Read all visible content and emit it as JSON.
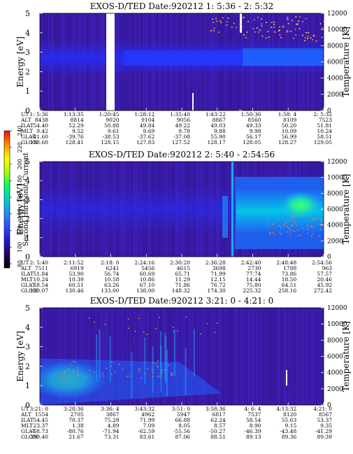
{
  "colorbar": {
    "label": "Second Harmonic Current",
    "ticks": [
      "240",
      "220",
      "200",
      "180",
      "160",
      "140",
      "120",
      "100",
      "80"
    ],
    "colors": [
      "#000000",
      "#2a0060",
      "#1a1ad8",
      "#2f4bff",
      "#1f8fff",
      "#00d0d0",
      "#00ff60",
      "#a8ff00",
      "#ffff00",
      "#ff9000",
      "#ff0000"
    ]
  },
  "row_labels": [
    "UT",
    "ALT",
    "ILAT",
    "MLT",
    "GLAT",
    "GLON"
  ],
  "chart_data": [
    {
      "type": "heatmap",
      "title": "EXOS-D/TED   Date:920212  1: 5:36 - 2: 5:32",
      "ylabel": "Energy [eV]",
      "y2label": "Temperature [K]",
      "ylim": [
        0,
        5
      ],
      "y2lim": [
        0,
        12000
      ],
      "yticks": [
        "0",
        "1",
        "2",
        "3",
        "4",
        "5"
      ],
      "y2ticks": [
        "0",
        "2000",
        "4000",
        "6000",
        "8000",
        "10000",
        "12000"
      ],
      "columns": [
        {
          "UT": "1: 5:36",
          "ALT": "8438",
          "ILAT": "54.40",
          "MLT": "9.42",
          "GLAT": "-41.60",
          "GLON": "128.60"
        },
        {
          "UT": "1:13:35",
          "ALT": "8814",
          "ILAT": "52.29",
          "MLT": "9.52",
          "GLAT": "-39.76",
          "GLON": "128.41"
        },
        {
          "UT": "1:20:45",
          "ALT": "9020",
          "ILAT": "50.88",
          "MLT": "9.61",
          "GLAT": "-38.53",
          "GLON": "128.15"
        },
        {
          "UT": "1:28:12",
          "ALT": "9104",
          "ILAT": "49.84",
          "MLT": "9.69",
          "GLAT": "-37.62",
          "GLON": "127.83"
        },
        {
          "UT": "1:35:40",
          "ALT": "9056",
          "ILAT": "49.22",
          "MLT": "9.78",
          "GLAT": "-37.08",
          "GLON": "127.52"
        },
        {
          "UT": "1:43:22",
          "ALT": "8867",
          "ILAT": "49.03",
          "MLT": "9.88",
          "GLAT": "55.90",
          "GLON": "128.17"
        },
        {
          "UT": "1:50:36",
          "ALT": "8560",
          "ILAT": "49.33",
          "MLT": "9.98",
          "GLAT": "56.17",
          "GLON": "128.05"
        },
        {
          "UT": "1:58: 4",
          "ALT": "8109",
          "ILAT": "50.20",
          "MLT": "10.09",
          "GLAT": "56.99",
          "GLON": "128.27"
        },
        {
          "UT": "2: 5:32",
          "ALT": "7523",
          "ILAT": "51.81",
          "MLT": "10.24",
          "GLAT": "58.51",
          "GLON": "129.05"
        }
      ]
    },
    {
      "type": "heatmap",
      "title": "EXOS-D/TED   Date:920212  2: 5:40 - 2:54:56",
      "ylabel": "Energy [eV]",
      "y2label": "Temperature [K]",
      "ylim": [
        0,
        5
      ],
      "y2lim": [
        0,
        12000
      ],
      "yticks": [
        "0",
        "1",
        "2",
        "3",
        "4",
        "5"
      ],
      "y2ticks": [
        "0",
        "2000",
        "4000",
        "6000",
        "8000",
        "10000",
        "12000"
      ],
      "columns": [
        {
          "UT": "2: 5:40",
          "ALT": "7511",
          "ILAT": "51.84",
          "MLT": "10.24",
          "GLAT": "58.54",
          "GLON": "129.07"
        },
        {
          "UT": "2:11:52",
          "ALT": "6919",
          "ILAT": "53.90",
          "MLT": "10.39",
          "GLAT": "60.51",
          "GLON": "130.46"
        },
        {
          "UT": "2:18: 0",
          "ALT": "6241",
          "ILAT": "56.74",
          "MLT": "10.58",
          "GLAT": "63.26",
          "GLON": "133.00"
        },
        {
          "UT": "2:24:16",
          "ALT": "5456",
          "ILAT": "60.69",
          "MLT": "10.86",
          "GLAT": "67.10",
          "GLON": "138.00"
        },
        {
          "UT": "2:30:20",
          "ALT": "4615",
          "ILAT": "65.71",
          "MLT": "11.29",
          "GLAT": "71.86",
          "GLON": "148.32"
        },
        {
          "UT": "2:36:28",
          "ALT": "3698",
          "ILAT": "71.99",
          "MLT": "12.15",
          "GLAT": "76.72",
          "GLON": "174.30"
        },
        {
          "UT": "2:42:40",
          "ALT": "2730",
          "ILAT": "77.74",
          "MLT": "14.44",
          "GLAT": "75.80",
          "GLON": "225.32"
        },
        {
          "UT": "2:48:48",
          "ALT": "1788",
          "ILAT": "73.86",
          "MLT": "18.50",
          "GLAT": "64.51",
          "GLON": "258.16"
        },
        {
          "UT": "2:54:56",
          "ALT": "963",
          "ILAT": "57.57",
          "MLT": "20.46",
          "GLAT": "45.92",
          "GLON": "272.42"
        }
      ]
    },
    {
      "type": "heatmap",
      "title": "EXOS-D/TED   Date:920212  3:21: 0 - 4:21: 0",
      "ylabel": "Energy [eV]",
      "y2label": "Temperature [K]",
      "ylim": [
        0,
        5
      ],
      "y2lim": [
        0,
        12000
      ],
      "yticks": [
        "0",
        "1",
        "2",
        "3",
        "4",
        "5"
      ],
      "y2ticks": [
        "0",
        "2000",
        "4000",
        "6000",
        "8000",
        "10000",
        "12000"
      ],
      "columns": [
        {
          "UT": "3:21: 0",
          "ALT": "1554",
          "ILAT": "54.45",
          "MLT": "23.37",
          "GLAT": "-68.73",
          "GLON": "309.40"
        },
        {
          "UT": "3:28:36",
          "ALT": "2705",
          "ILAT": "70.37",
          "MLT": "1.38",
          "GLAT": "-80.76",
          "GLON": "21.67"
        },
        {
          "UT": "3:36: 4",
          "ALT": "3867",
          "ILAT": "75.28",
          "MLT": "4.89",
          "GLAT": "-71.94",
          "GLON": "73.31"
        },
        {
          "UT": "3:43:32",
          "ALT": "4962",
          "ILAT": "71.99",
          "MLT": "7.09",
          "GLAT": "-62.59",
          "GLON": "83.61"
        },
        {
          "UT": "3:51: 0",
          "ALT": "5947",
          "ILAT": "66.88",
          "MLT": "8.05",
          "GLAT": "-55.56",
          "GLON": "87.06"
        },
        {
          "UT": "3:58:36",
          "ALT": "6817",
          "ILAT": "62.24",
          "MLT": "8.57",
          "GLAT": "-50.27",
          "GLON": "88.51"
        },
        {
          "UT": "4: 6: 4",
          "ALT": "7537",
          "ILAT": "58.54",
          "MLT": "8.90",
          "GLAT": "-46.39",
          "GLON": "89.13"
        },
        {
          "UT": "4:13:32",
          "ALT": "8120",
          "ILAT": "55.63",
          "MLT": "9.15",
          "GLAT": "-43.48",
          "GLON": "89.36"
        },
        {
          "UT": "4:21: 0",
          "ALT": "8567",
          "ILAT": "53.37",
          "MLT": "9.35",
          "GLAT": "-41.29",
          "GLON": "89.39"
        }
      ]
    }
  ]
}
